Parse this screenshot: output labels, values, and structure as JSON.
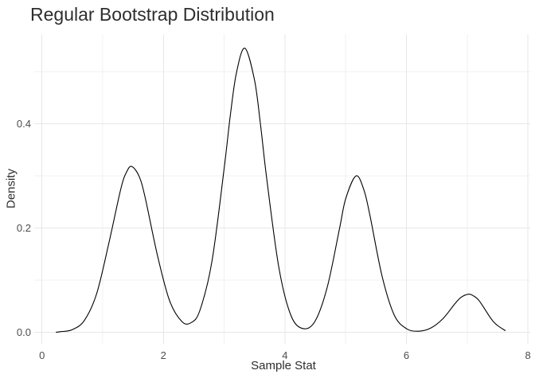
{
  "chart_data": {
    "type": "line",
    "variant": "density_curve",
    "title": "Regular Bootstrap Distribution",
    "xlabel": "Sample Stat",
    "ylabel": "Density",
    "legend": "none",
    "grid": "major and minor, light gray on white panel, no axis lines, no tick marks",
    "background": "#ffffff",
    "line_color": "#000000",
    "grid_major_color": "#e7e7e7",
    "grid_minor_color": "#f1f1f1",
    "title_color": "#2e2e2e",
    "axis_title_color": "#2e2e2e",
    "tick_label_color": "#4d4d4d",
    "x_axis": {
      "range": [
        0,
        8
      ],
      "ticks": [
        {
          "value": 0,
          "label": "0"
        },
        {
          "value": 2,
          "label": "2"
        },
        {
          "value": 4,
          "label": "4"
        },
        {
          "value": 6,
          "label": "6"
        },
        {
          "value": 8,
          "label": "8"
        }
      ],
      "minor": [
        1,
        3,
        5,
        7
      ]
    },
    "y_axis": {
      "range": [
        -0.022,
        0.572
      ],
      "ticks": [
        {
          "value": 0.0,
          "label": "0.0"
        },
        {
          "value": 0.2,
          "label": "0.2"
        },
        {
          "value": 0.4,
          "label": "0.4"
        }
      ],
      "minor": [
        0.1,
        0.3,
        0.5
      ]
    },
    "peaks": [
      {
        "x": 1.48,
        "density": 0.318
      },
      {
        "x": 3.34,
        "density": 0.545
      },
      {
        "x": 5.17,
        "density": 0.3
      },
      {
        "x": 7.02,
        "density": 0.073
      }
    ],
    "valleys": [
      {
        "x": 2.42,
        "density": 0.018
      },
      {
        "x": 4.33,
        "density": 0.006
      },
      {
        "x": 6.2,
        "density": 0.002
      }
    ],
    "points": [
      [
        0.23,
        0.0
      ],
      [
        0.3,
        0.001
      ],
      [
        0.5,
        0.005
      ],
      [
        0.7,
        0.023
      ],
      [
        0.9,
        0.074
      ],
      [
        1.1,
        0.17
      ],
      [
        1.3,
        0.276
      ],
      [
        1.4,
        0.309
      ],
      [
        1.48,
        0.318
      ],
      [
        1.6,
        0.299
      ],
      [
        1.7,
        0.258
      ],
      [
        1.9,
        0.148
      ],
      [
        2.1,
        0.061
      ],
      [
        2.3,
        0.021
      ],
      [
        2.45,
        0.018
      ],
      [
        2.6,
        0.042
      ],
      [
        2.8,
        0.137
      ],
      [
        3.0,
        0.315
      ],
      [
        3.1,
        0.415
      ],
      [
        3.2,
        0.497
      ],
      [
        3.34,
        0.545
      ],
      [
        3.5,
        0.483
      ],
      [
        3.6,
        0.396
      ],
      [
        3.7,
        0.295
      ],
      [
        3.9,
        0.124
      ],
      [
        4.1,
        0.032
      ],
      [
        4.3,
        0.007
      ],
      [
        4.5,
        0.022
      ],
      [
        4.7,
        0.088
      ],
      [
        4.9,
        0.2
      ],
      [
        5.0,
        0.256
      ],
      [
        5.17,
        0.3
      ],
      [
        5.3,
        0.273
      ],
      [
        5.4,
        0.224
      ],
      [
        5.6,
        0.107
      ],
      [
        5.8,
        0.033
      ],
      [
        6.0,
        0.007
      ],
      [
        6.2,
        0.002
      ],
      [
        6.4,
        0.008
      ],
      [
        6.6,
        0.026
      ],
      [
        6.8,
        0.055
      ],
      [
        6.9,
        0.067
      ],
      [
        7.02,
        0.073
      ],
      [
        7.1,
        0.07
      ],
      [
        7.2,
        0.06
      ],
      [
        7.4,
        0.025
      ],
      [
        7.5,
        0.013
      ],
      [
        7.63,
        0.003
      ]
    ]
  }
}
